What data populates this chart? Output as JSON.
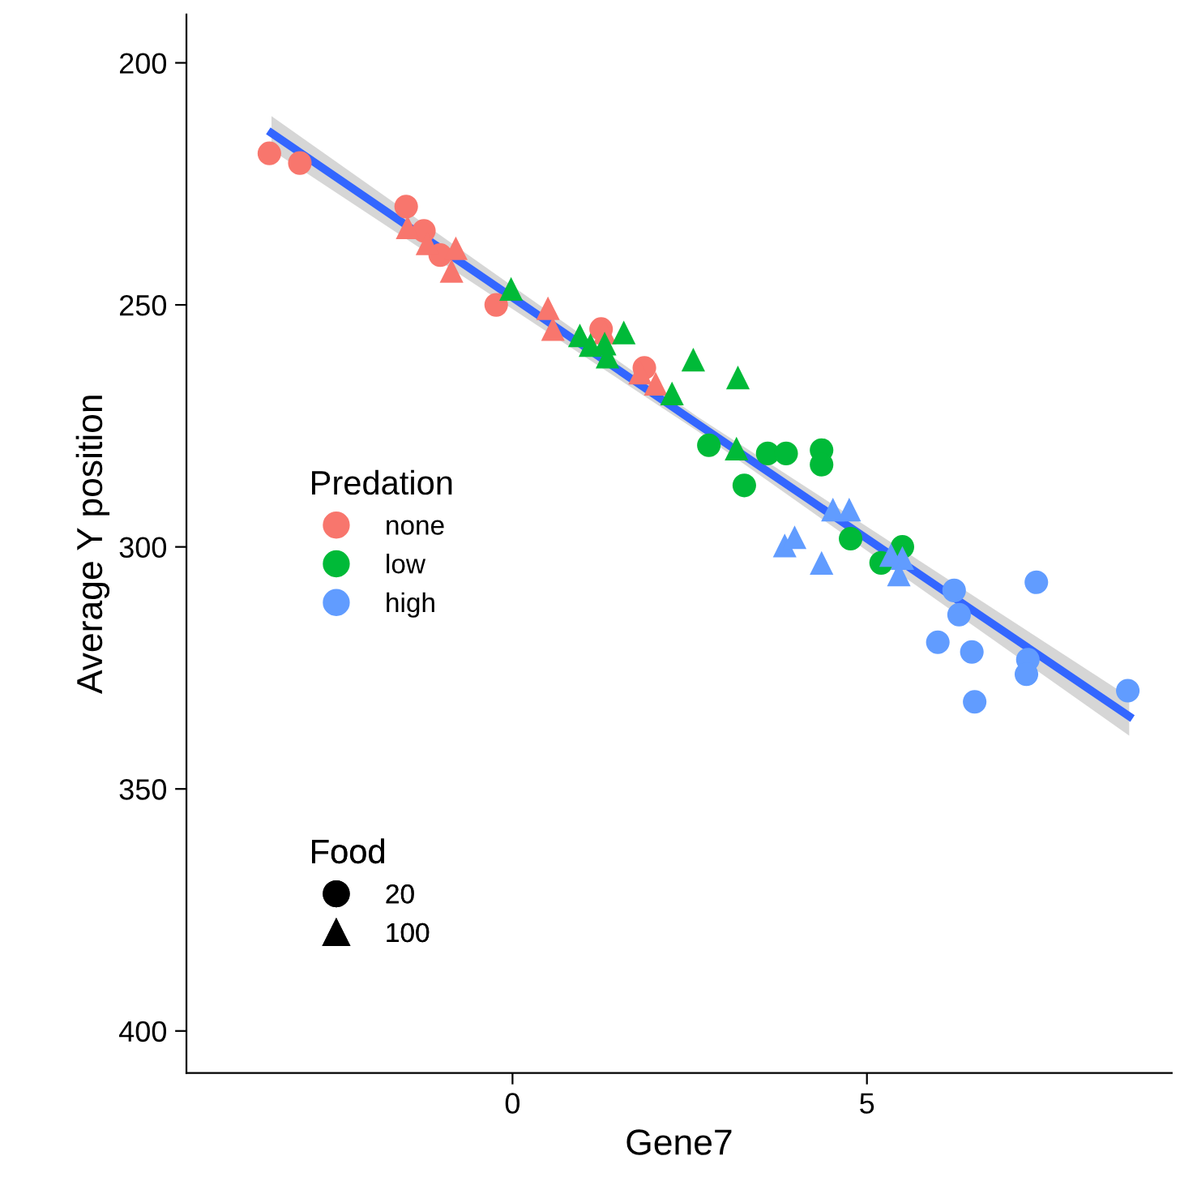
{
  "chart_data": {
    "type": "scatter",
    "xlabel": "Gene7",
    "ylabel": "Average Y position",
    "xlim": [
      -4.6,
      9.3
    ],
    "ylim": [
      408.7,
      190
    ],
    "xticks": [
      0,
      5
    ],
    "yticks": [
      200,
      250,
      300,
      350,
      400
    ],
    "legend": "left",
    "legend_title": "Predation",
    "annotations": [
      "Food"
    ],
    "series": [
      {
        "name": "none",
        "color": "#f8766d",
        "marker": "circle",
        "x": [
          -3.43,
          -3.0,
          -1.5,
          -1.25,
          -1.02,
          -0.23,
          1.25,
          1.86
        ],
        "values": [
          218.7,
          220.7,
          229.7,
          234.7,
          239.7,
          250,
          255,
          263
        ]
      },
      {
        "color": "#f8766d",
        "marker": "triangle",
        "x": [
          -1.48,
          -1.2,
          -0.8,
          -0.86,
          0.5,
          0.57,
          1.3,
          1.8,
          2.02
        ],
        "values": [
          234,
          237.3,
          238.3,
          243,
          250.7,
          255,
          255.7,
          264,
          266.3
        ]
      },
      {
        "name": "low",
        "color": "#00ba38",
        "marker": "circle",
        "x": [
          2.77,
          3.27,
          3.6,
          3.86,
          4.36,
          4.36,
          4.77,
          5.5,
          5.2
        ],
        "values": [
          279,
          287.3,
          280.7,
          280.7,
          280,
          283,
          298.3,
          300,
          303.3
        ]
      },
      {
        "color": "#00ba38",
        "marker": "triangle",
        "x": [
          -0.02,
          0.95,
          1.1,
          1.3,
          1.34,
          1.57,
          2.25,
          2.55,
          3.18,
          3.16
        ],
        "values": [
          246.7,
          256.3,
          258.3,
          258,
          260.7,
          255.7,
          268.3,
          261.3,
          265,
          279.7
        ]
      },
      {
        "name": "high",
        "color": "#619cff",
        "marker": "circle",
        "x": [
          6.23,
          6.3,
          6.0,
          6.48,
          6.52,
          7.27,
          7.25,
          7.39,
          8.68
        ],
        "values": [
          309,
          314,
          319.7,
          321.7,
          332,
          323.3,
          326.3,
          307.3,
          329.7
        ]
      },
      {
        "color": "#619cff",
        "marker": "triangle",
        "x": [
          3.84,
          3.98,
          4.52,
          4.75,
          4.36,
          5.34,
          5.5,
          5.45
        ],
        "values": [
          299.7,
          298,
          292.3,
          292.3,
          303.3,
          301.7,
          302.3,
          305.7
        ]
      },
      {
        "name": "20",
        "color": "#000000",
        "marker": "circle"
      },
      {
        "name": "100",
        "color": "#000000",
        "marker": "triangle"
      },
      {
        "type": "line",
        "color": "#3366ff",
        "x": [
          -3.4,
          2.6,
          8.7
        ],
        "values": [
          214.5,
          274.5,
          335
        ],
        "lower": [
          211,
          273,
          331
        ],
        "upper": [
          218,
          276,
          339
        ]
      }
    ]
  }
}
